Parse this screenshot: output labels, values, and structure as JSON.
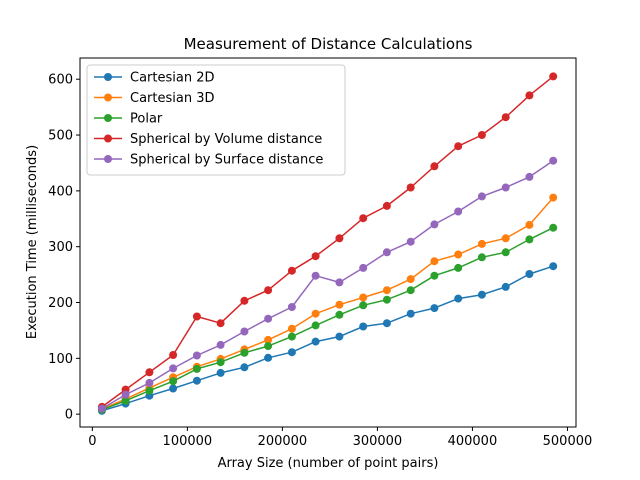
{
  "chart_data": {
    "type": "line",
    "title": "Measurement of Distance Calculations",
    "xlabel": "Array Size (number of point pairs)",
    "ylabel": "Execution Time (milliseconds)",
    "xlim": [
      -13000,
      509000
    ],
    "ylim": [
      -23,
      638
    ],
    "xticks": [
      0,
      100000,
      200000,
      300000,
      400000,
      500000
    ],
    "xtick_labels": [
      "0",
      "100000",
      "200000",
      "300000",
      "400000",
      "500000"
    ],
    "yticks": [
      0,
      100,
      200,
      300,
      400,
      500,
      600
    ],
    "ytick_labels": [
      "0",
      "100",
      "200",
      "300",
      "400",
      "500",
      "600"
    ],
    "grid": false,
    "legend": "top-left",
    "x": [
      10000,
      35000,
      60000,
      85000,
      110000,
      135000,
      160000,
      185000,
      210000,
      235000,
      260000,
      285000,
      310000,
      335000,
      360000,
      385000,
      410000,
      435000,
      460000,
      485000
    ],
    "series": [
      {
        "name": "Cartesian 2D",
        "color": "#1f77b4",
        "values": [
          6,
          19,
          33,
          46,
          60,
          74,
          84,
          101,
          111,
          130,
          139,
          157,
          163,
          180,
          190,
          207,
          214,
          228,
          251,
          265
        ]
      },
      {
        "name": "Cartesian 3D",
        "color": "#ff7f0e",
        "values": [
          9,
          27,
          47,
          66,
          85,
          99,
          116,
          133,
          153,
          180,
          196,
          209,
          222,
          242,
          274,
          286,
          305,
          315,
          339,
          388
        ]
      },
      {
        "name": "Polar",
        "color": "#2ca02c",
        "values": [
          8,
          24,
          42,
          59,
          81,
          93,
          110,
          122,
          139,
          159,
          178,
          195,
          205,
          222,
          248,
          262,
          281,
          290,
          313,
          334
        ]
      },
      {
        "name": "Spherical by Volume distance",
        "color": "#d62728",
        "values": [
          13,
          44,
          75,
          106,
          175,
          163,
          203,
          222,
          257,
          283,
          315,
          351,
          373,
          406,
          444,
          480,
          500,
          532,
          571,
          605
        ]
      },
      {
        "name": "Spherical by Surface distance",
        "color": "#9467bd",
        "values": [
          10,
          35,
          56,
          82,
          105,
          124,
          148,
          171,
          192,
          248,
          236,
          262,
          290,
          309,
          340,
          363,
          390,
          406,
          425,
          454
        ]
      }
    ]
  }
}
